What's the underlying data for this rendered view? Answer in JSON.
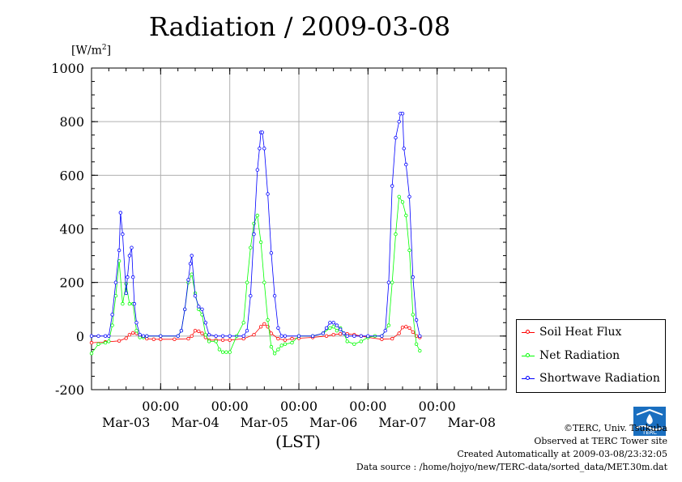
{
  "title": "Radiation / 2009-03-08",
  "unit_label": "[W/m2]",
  "xlabel": "(LST)",
  "footer": {
    "copyright": "©TERC, Univ. Tsukuba",
    "site": "Observed at TERC Tower site",
    "created": "Created Automatically at 2009-03-08/23:32:05",
    "source": "Data source : /home/hojyo/new/TERC-data/sorted_data/MET.30m.dat"
  },
  "logo_text": "TERC",
  "colors": {
    "soil": "#ff0000",
    "net": "#00ff00",
    "shortwave": "#0000ff",
    "grid": "#b0b0b0"
  },
  "chart_data": {
    "type": "line",
    "title": "Radiation / 2009-03-08",
    "xlabel": "(LST)",
    "ylabel": "[W/m2]",
    "ylim": [
      -200,
      1000
    ],
    "yticks": [
      -200,
      0,
      200,
      400,
      600,
      800,
      1000
    ],
    "xlim_days": [
      2.0,
      8.0
    ],
    "xtick_time_labels": [
      "00:00",
      "00:00",
      "00:00",
      "00:00",
      "00:00"
    ],
    "xtick_date_labels": [
      "Mar-03",
      "Mar-04",
      "Mar-05",
      "Mar-06",
      "Mar-07",
      "Mar-08"
    ],
    "grid": true,
    "legend_position": "bottom-right",
    "x_unit": "day of March 2009",
    "series": [
      {
        "name": "Soil Heat Flux",
        "color": "#ff0000",
        "x": [
          2.0,
          2.2,
          2.4,
          2.5,
          2.55,
          2.6,
          2.65,
          2.7,
          2.8,
          2.9,
          3.0,
          3.2,
          3.4,
          3.45,
          3.5,
          3.55,
          3.6,
          3.65,
          3.7,
          3.8,
          3.9,
          4.0,
          4.2,
          4.35,
          4.45,
          4.5,
          4.55,
          4.6,
          4.7,
          4.8,
          4.9,
          5.0,
          5.2,
          5.4,
          5.5,
          5.6,
          5.7,
          5.8,
          5.9,
          6.0,
          6.2,
          6.35,
          6.45,
          6.5,
          6.55,
          6.6,
          6.65,
          6.7,
          6.75
        ],
        "y": [
          -25,
          -22,
          -18,
          -8,
          5,
          12,
          10,
          0,
          -10,
          -12,
          -12,
          -12,
          -10,
          0,
          20,
          18,
          10,
          -5,
          -15,
          -15,
          -15,
          -15,
          -10,
          5,
          35,
          45,
          35,
          10,
          -10,
          -15,
          -10,
          -8,
          -5,
          0,
          5,
          8,
          8,
          5,
          0,
          -5,
          -12,
          -10,
          10,
          32,
          35,
          30,
          15,
          0,
          -5
        ]
      },
      {
        "name": "Net Radiation",
        "color": "#00ff00",
        "x": [
          2.0,
          2.1,
          2.2,
          2.25,
          2.3,
          2.35,
          2.4,
          2.45,
          2.5,
          2.55,
          2.6,
          2.65,
          2.7,
          2.75,
          2.8,
          3.0,
          3.25,
          3.3,
          3.35,
          3.4,
          3.45,
          3.5,
          3.55,
          3.6,
          3.65,
          3.7,
          3.8,
          3.85,
          3.9,
          3.95,
          4.0,
          4.1,
          4.2,
          4.25,
          4.3,
          4.35,
          4.4,
          4.45,
          4.5,
          4.55,
          4.6,
          4.65,
          4.7,
          4.75,
          4.8,
          4.9,
          5.0,
          5.2,
          5.35,
          5.45,
          5.5,
          5.55,
          5.6,
          5.65,
          5.7,
          5.8,
          5.9,
          6.0,
          6.1,
          6.2,
          6.3,
          6.35,
          6.4,
          6.45,
          6.5,
          6.55,
          6.6,
          6.65,
          6.7,
          6.75
        ],
        "y": [
          -65,
          -30,
          -25,
          -20,
          40,
          150,
          280,
          120,
          195,
          120,
          120,
          20,
          -5,
          -5,
          0,
          0,
          0,
          20,
          100,
          200,
          230,
          160,
          100,
          80,
          5,
          -20,
          -20,
          -50,
          -60,
          -60,
          -60,
          0,
          50,
          200,
          330,
          420,
          450,
          350,
          200,
          60,
          -40,
          -65,
          -50,
          -35,
          -30,
          -25,
          0,
          0,
          10,
          30,
          35,
          20,
          30,
          10,
          -20,
          -30,
          -20,
          -5,
          0,
          0,
          40,
          200,
          380,
          520,
          500,
          450,
          320,
          80,
          -30,
          -55
        ]
      },
      {
        "name": "Shortwave Radiation",
        "color": "#0000ff",
        "x": [
          2.0,
          2.1,
          2.2,
          2.25,
          2.3,
          2.35,
          2.4,
          2.42,
          2.45,
          2.5,
          2.52,
          2.55,
          2.58,
          2.6,
          2.62,
          2.65,
          2.7,
          2.75,
          2.8,
          3.0,
          3.25,
          3.3,
          3.35,
          3.4,
          3.43,
          3.45,
          3.5,
          3.55,
          3.6,
          3.65,
          3.7,
          3.8,
          3.9,
          4.0,
          4.2,
          4.25,
          4.3,
          4.35,
          4.4,
          4.43,
          4.45,
          4.47,
          4.5,
          4.55,
          4.6,
          4.65,
          4.7,
          4.75,
          4.8,
          5.0,
          5.2,
          5.35,
          5.4,
          5.45,
          5.5,
          5.55,
          5.6,
          5.65,
          5.7,
          5.8,
          5.9,
          6.0,
          6.2,
          6.25,
          6.3,
          6.35,
          6.4,
          6.45,
          6.47,
          6.5,
          6.52,
          6.55,
          6.6,
          6.65,
          6.7,
          6.75
        ],
        "y": [
          0,
          0,
          0,
          0,
          80,
          200,
          320,
          460,
          380,
          160,
          220,
          300,
          330,
          220,
          120,
          50,
          5,
          0,
          0,
          0,
          0,
          20,
          100,
          210,
          270,
          300,
          150,
          110,
          100,
          50,
          5,
          0,
          0,
          0,
          0,
          20,
          150,
          380,
          620,
          700,
          760,
          760,
          700,
          530,
          310,
          150,
          30,
          0,
          0,
          0,
          0,
          10,
          30,
          50,
          50,
          40,
          25,
          10,
          0,
          0,
          0,
          0,
          0,
          20,
          200,
          560,
          740,
          800,
          830,
          830,
          700,
          640,
          520,
          220,
          60,
          0
        ]
      }
    ]
  }
}
